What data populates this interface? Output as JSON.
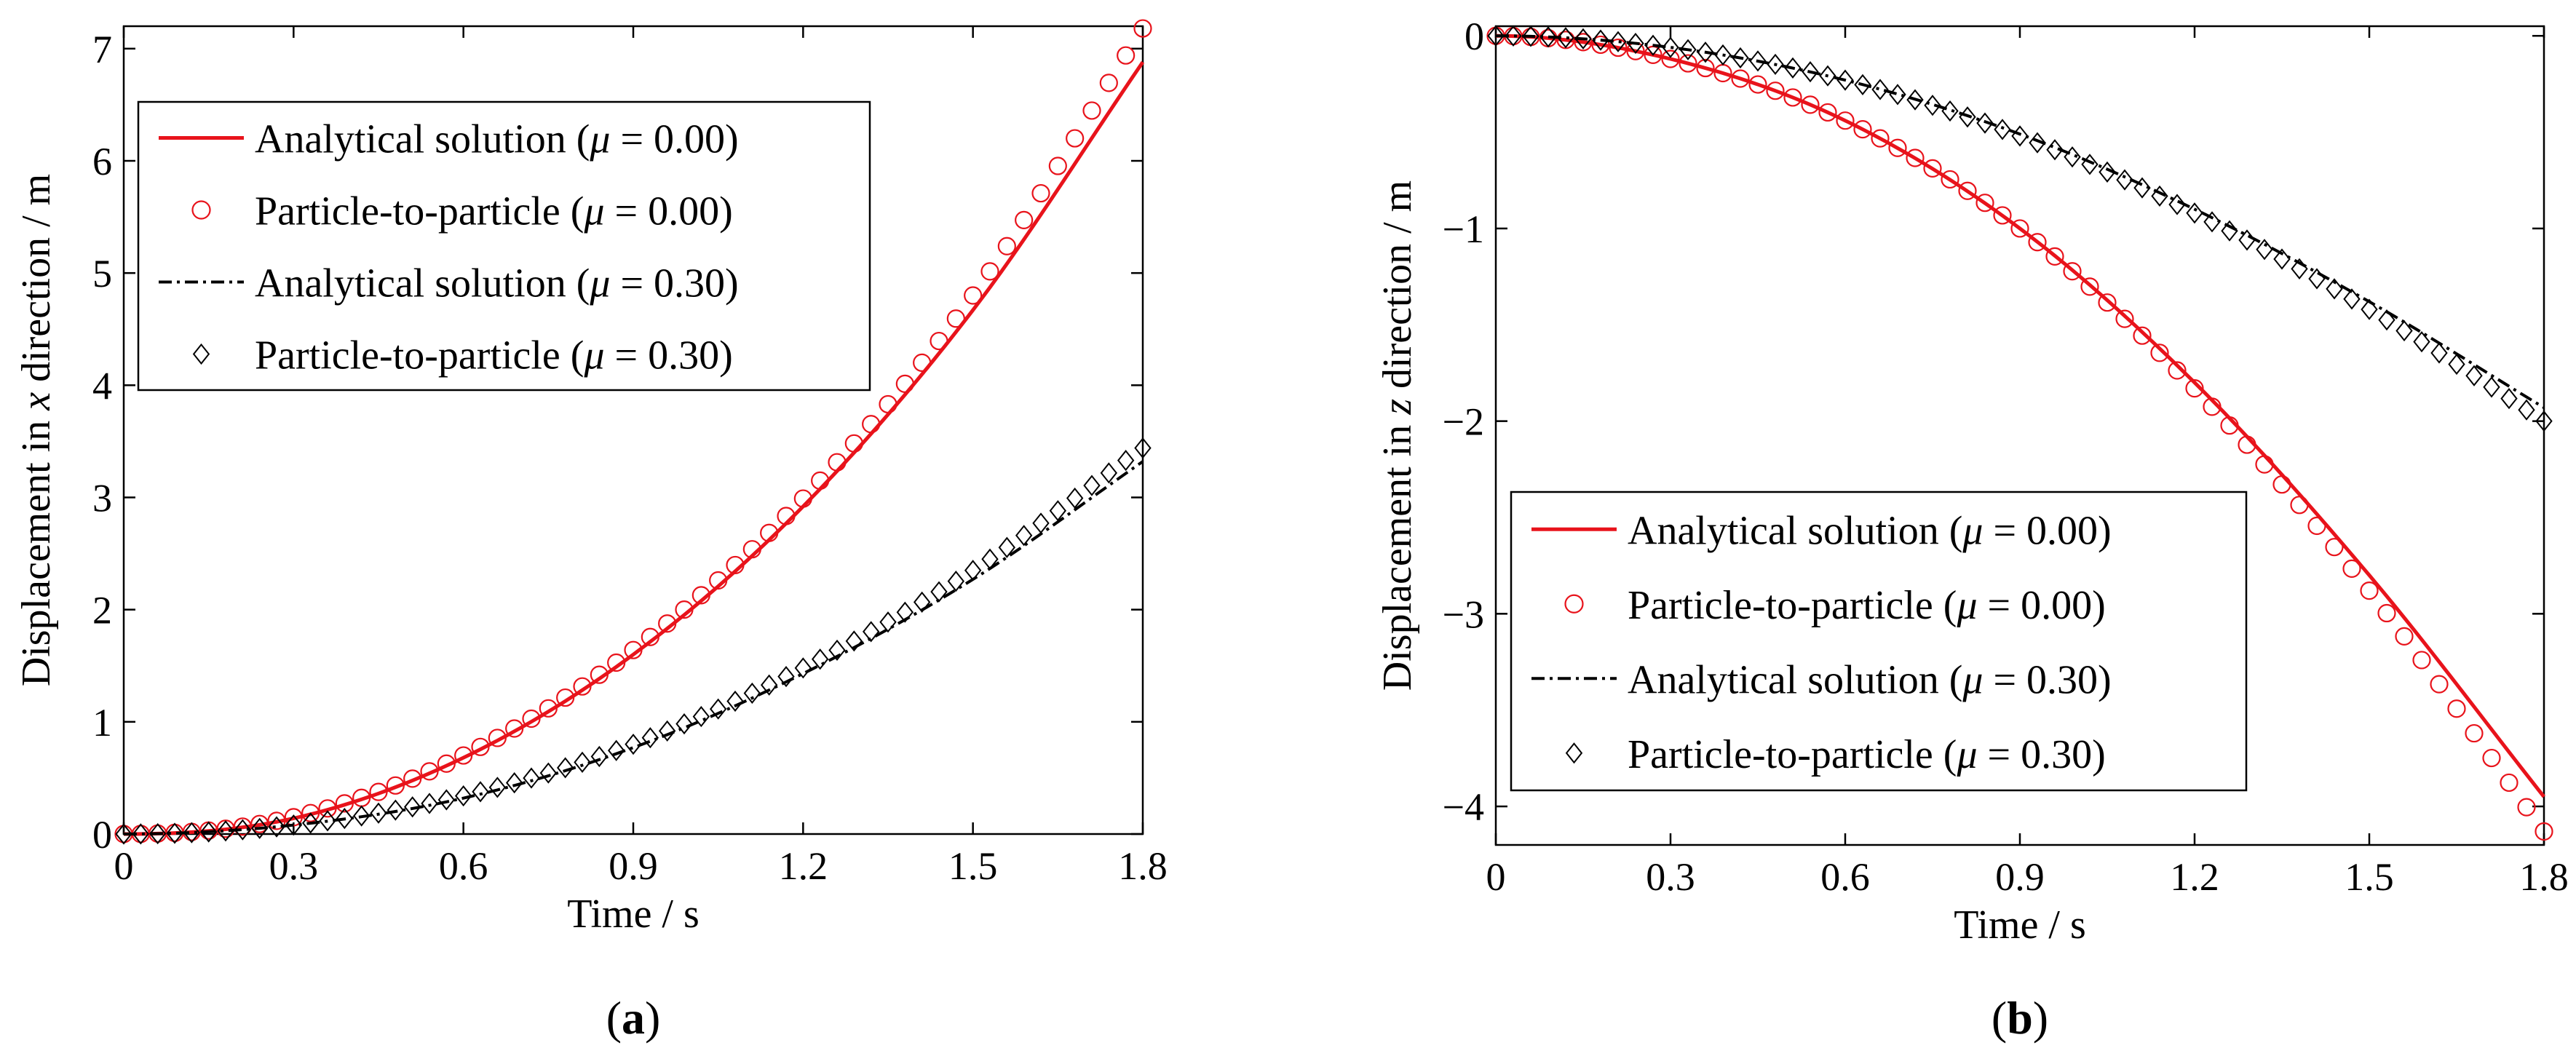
{
  "figure_panels": [
    "a",
    "b"
  ],
  "chart_data": [
    {
      "type": "line",
      "panel_label": "a",
      "xlabel": "Time / s",
      "ylabel_prefix": "Displacement in ",
      "ylabel_var": "x",
      "ylabel_suffix": " direction / m",
      "xlim": [
        0,
        1.8
      ],
      "ylim": [
        0,
        7.2
      ],
      "xticks": [
        0,
        0.3,
        0.6,
        0.9,
        1.2,
        1.5,
        1.8
      ],
      "xtick_labels": [
        "0",
        "0.3",
        "0.6",
        "0.9",
        "1.2",
        "1.5",
        "1.8"
      ],
      "yticks": [
        0,
        1,
        2,
        3,
        4,
        5,
        6,
        7
      ],
      "ytick_labels": [
        "0",
        "1",
        "2",
        "3",
        "4",
        "5",
        "6",
        "7"
      ],
      "legend_position": "top-left",
      "series": [
        {
          "name": "Analytical solution",
          "mu": "0.00",
          "style": "solid",
          "marker": "none",
          "color": "#e8131b",
          "x": [
            0,
            0.3,
            0.6,
            0.9,
            1.2,
            1.5,
            1.8
          ],
          "values": [
            0,
            0.14,
            0.68,
            1.6,
            2.92,
            4.67,
            6.88
          ]
        },
        {
          "name": "Particle-to-particle",
          "mu": "0.00",
          "style": "none",
          "marker": "circle",
          "color": "#e8131b",
          "x": [
            0,
            0.3,
            0.6,
            0.9,
            1.2,
            1.5,
            1.8
          ],
          "values": [
            0,
            0.15,
            0.7,
            1.64,
            2.99,
            4.8,
            7.18
          ]
        },
        {
          "name": "Analytical solution",
          "mu": "0.30",
          "style": "dashdot",
          "marker": "none",
          "color": "#000000",
          "x": [
            0,
            0.3,
            0.6,
            0.9,
            1.2,
            1.5,
            1.8
          ],
          "values": [
            0,
            0.08,
            0.32,
            0.77,
            1.43,
            2.27,
            3.32
          ]
        },
        {
          "name": "Particle-to-particle",
          "mu": "0.30",
          "style": "none",
          "marker": "diamond",
          "color": "#000000",
          "x": [
            0,
            0.3,
            0.6,
            0.9,
            1.2,
            1.5,
            1.8
          ],
          "values": [
            0,
            0.08,
            0.34,
            0.8,
            1.48,
            2.35,
            3.44
          ]
        }
      ]
    },
    {
      "type": "line",
      "panel_label": "b",
      "xlabel": "Time / s",
      "ylabel_prefix": "Displacement in ",
      "ylabel_var": "z",
      "ylabel_suffix": " direction / m",
      "xlim": [
        0,
        1.8
      ],
      "ylim": [
        -4.2,
        0.05
      ],
      "xticks": [
        0,
        0.3,
        0.6,
        0.9,
        1.2,
        1.5,
        1.8
      ],
      "xtick_labels": [
        "0",
        "0.3",
        "0.6",
        "0.9",
        "1.2",
        "1.5",
        "1.8"
      ],
      "yticks": [
        0,
        -1,
        -2,
        -3,
        -4
      ],
      "ytick_labels": [
        "0",
        "−1",
        "−2",
        "−3",
        "−4"
      ],
      "legend_position": "bottom-left",
      "series": [
        {
          "name": "Analytical solution",
          "mu": "0.00",
          "style": "solid",
          "marker": "none",
          "color": "#e8131b",
          "x": [
            0,
            0.3,
            0.6,
            0.9,
            1.2,
            1.5,
            1.8
          ],
          "values": [
            0,
            -0.12,
            -0.44,
            -1.0,
            -1.8,
            -2.8,
            -3.95
          ]
        },
        {
          "name": "Particle-to-particle",
          "mu": "0.00",
          "style": "none",
          "marker": "circle",
          "color": "#e8131b",
          "x": [
            0,
            0.3,
            0.6,
            0.9,
            1.2,
            1.5,
            1.8
          ],
          "values": [
            0,
            -0.12,
            -0.44,
            -1.0,
            -1.83,
            -2.88,
            -4.13
          ]
        },
        {
          "name": "Analytical solution",
          "mu": "0.30",
          "style": "dashdot",
          "marker": "none",
          "color": "#000000",
          "x": [
            0,
            0.3,
            0.6,
            0.9,
            1.2,
            1.5,
            1.8
          ],
          "values": [
            0,
            -0.06,
            -0.23,
            -0.51,
            -0.9,
            -1.38,
            -1.93
          ]
        },
        {
          "name": "Particle-to-particle",
          "mu": "0.30",
          "style": "none",
          "marker": "diamond",
          "color": "#000000",
          "x": [
            0,
            0.3,
            0.6,
            0.9,
            1.2,
            1.5,
            1.8
          ],
          "values": [
            0,
            -0.06,
            -0.23,
            -0.52,
            -0.92,
            -1.42,
            -2.0
          ]
        }
      ]
    }
  ]
}
